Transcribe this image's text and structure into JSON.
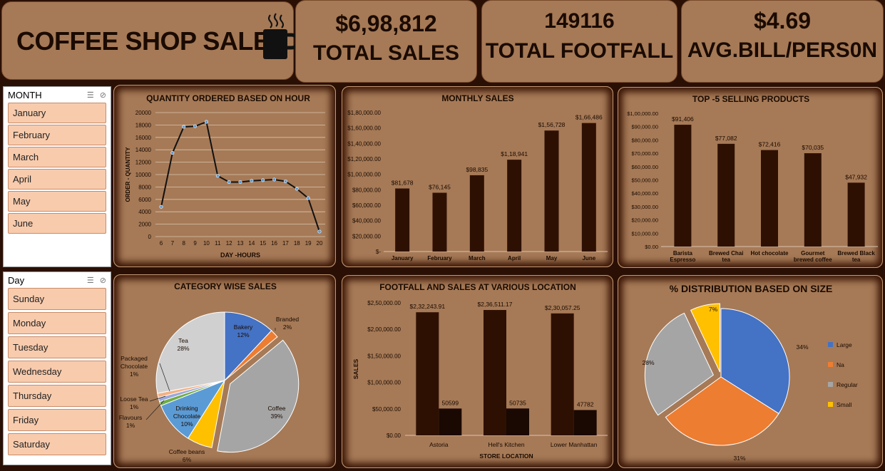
{
  "header": {
    "title": "COFFEE SHOP SALES",
    "kpis": [
      {
        "value": "$6,98,812",
        "label": "TOTAL SALES"
      },
      {
        "value": "149116",
        "label": "TOTAL FOOTFALL"
      },
      {
        "value": "$4.69",
        "label": "AVG.BILL/PERS0N"
      }
    ]
  },
  "slicers": {
    "month": {
      "title": "MONTH",
      "items": [
        "January",
        "February",
        "March",
        "April",
        "May",
        "June"
      ]
    },
    "day": {
      "title": "Day",
      "items": [
        "Sunday",
        "Monday",
        "Tuesday",
        "Wednesday",
        "Thursday",
        "Friday",
        "Saturday"
      ]
    }
  },
  "chart_data": [
    {
      "type": "line",
      "title": "QUANTITY ORDERED BASED ON HOUR",
      "xlabel": "DAY -HOURS",
      "ylabel": "ORDER - QUANTITY",
      "x": [
        "6",
        "7",
        "8",
        "9",
        "10",
        "11",
        "12",
        "13",
        "14",
        "15",
        "16",
        "17",
        "18",
        "19",
        "20"
      ],
      "values": [
        4800,
        13500,
        17700,
        17800,
        18500,
        9800,
        8800,
        8800,
        9000,
        9100,
        9200,
        8900,
        7700,
        6200,
        800
      ],
      "ylim": [
        0,
        20000
      ],
      "yticks": [
        "0",
        "2000",
        "4000",
        "6000",
        "8000",
        "10000",
        "12000",
        "14000",
        "16000",
        "18000",
        "20000"
      ],
      "grid": true,
      "color": "#111111"
    },
    {
      "type": "bar",
      "title": "MONTHLY SALES",
      "categories": [
        "January",
        "February",
        "March",
        "April",
        "May",
        "June"
      ],
      "values": [
        81678,
        76145,
        98835,
        118941,
        156728,
        166486
      ],
      "data_labels": [
        "$81,678",
        "$76,145",
        "$98,835",
        "$1,18,941",
        "$1,56,728",
        "$1,66,486"
      ],
      "ylim": [
        0,
        180000
      ],
      "yticks": [
        "$-",
        "$20,000.00",
        "$40,000.00",
        "$60,000.00",
        "$80,000.00",
        "$1,00,000.00",
        "$1,20,000.00",
        "$1,40,000.00",
        "$1,60,000.00",
        "$1,80,000.00"
      ],
      "color": "#2e1003"
    },
    {
      "type": "bar",
      "title": "TOP -5 SELLING PRODUCTS",
      "categories": [
        [
          "Barista",
          "Espresso"
        ],
        [
          "Brewed Chai",
          "tea"
        ],
        [
          "Hot chocolate"
        ],
        [
          "Gourmet",
          "brewed coffee"
        ],
        [
          "Brewed Black",
          "tea"
        ]
      ],
      "values": [
        91406,
        77082,
        72416,
        70035,
        47932
      ],
      "data_labels": [
        "$91,406",
        "$77,082",
        "$72,416",
        "$70,035",
        "$47,932"
      ],
      "ylim": [
        0,
        100000
      ],
      "yticks": [
        "$0.00",
        "$10,000.00",
        "$20,000.00",
        "$30,000.00",
        "$40,000.00",
        "$50,000.00",
        "$60,000.00",
        "$70,000.00",
        "$80,000.00",
        "$90,000.00",
        "$1,00,000.00"
      ],
      "color": "#2e1003"
    },
    {
      "type": "pie",
      "title": "CATEGORY WISE SALES",
      "slices": [
        {
          "label": "Bakery",
          "pct": "12%",
          "value": 12,
          "color": "#4472c4"
        },
        {
          "label": "Branded",
          "pct": "2%",
          "value": 2,
          "color": "#ed7d31"
        },
        {
          "label": "Coffee",
          "pct": "39%",
          "value": 39,
          "color": "#a5a5a5"
        },
        {
          "label": "Coffee beans",
          "pct": "6%",
          "value": 6,
          "color": "#ffc000"
        },
        {
          "label": "Drinking Chocolate",
          "pct": "10%",
          "value": 10,
          "color": "#5b9bd5"
        },
        {
          "label": "Flavours",
          "pct": "1%",
          "value": 1,
          "color": "#70ad47"
        },
        {
          "label": "Loose Tea",
          "pct": "1%",
          "value": 1,
          "color": "#9ca8dc"
        },
        {
          "label": "Packaged Chocolate",
          "pct": "1%",
          "value": 1,
          "color": "#f4b183"
        },
        {
          "label": "Tea",
          "pct": "28%",
          "value": 28,
          "color": "#d0d0d0"
        }
      ]
    },
    {
      "type": "bar",
      "title": "FOOTFALL AND SALES  AT VARIOUS LOCATION",
      "xlabel": "STORE LOCATION",
      "ylabel": "SALES",
      "categories": [
        "Astoria",
        "Hell's Kitchen",
        "Lower Manhattan"
      ],
      "series": [
        {
          "values": [
            232243.91,
            236511.17,
            230057.25
          ],
          "labels": [
            "$2,32,243.91",
            "$2,36,511.17",
            "$2,30,057.25"
          ],
          "color": "#2e1003"
        },
        {
          "values": [
            50599,
            50735,
            47782
          ],
          "labels": [
            "50599",
            "50735",
            "47782"
          ],
          "color": "#1a0802"
        }
      ],
      "ylim": [
        0,
        250000
      ],
      "yticks": [
        "$0.00",
        "$50,000.00",
        "$1,00,000.00",
        "$1,50,000.00",
        "$2,00,000.00",
        "$2,50,000.00"
      ]
    },
    {
      "type": "pie",
      "title": "% DISTRIBUTION BASED ON SIZE",
      "legend": "right",
      "slices": [
        {
          "label": "Large",
          "pct": "34%",
          "value": 34,
          "color": "#4472c4"
        },
        {
          "label": "Na",
          "pct": "31%",
          "value": 31,
          "color": "#ed7d31"
        },
        {
          "label": "Regular",
          "pct": "28%",
          "value": 28,
          "color": "#a5a5a5"
        },
        {
          "label": "Small",
          "pct": "7%",
          "value": 7,
          "color": "#ffc000"
        }
      ]
    }
  ]
}
